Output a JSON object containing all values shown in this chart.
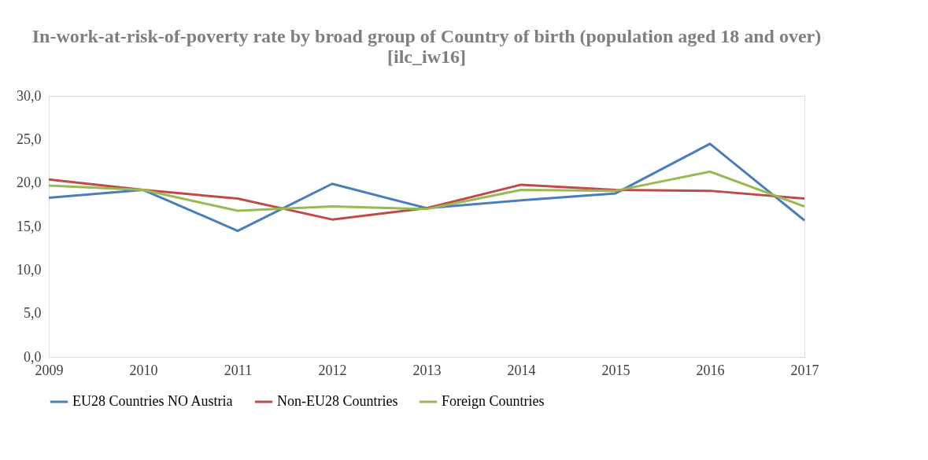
{
  "chart_data": {
    "type": "line",
    "title": [
      "In-work-at-risk-of-poverty rate by broad group of Country of birth (population aged 18 and over)",
      "[ilc_iw16]"
    ],
    "categories": [
      "2009",
      "2010",
      "2011",
      "2012",
      "2013",
      "2014",
      "2015",
      "2016",
      "2017"
    ],
    "series": [
      {
        "name": "EU28 Countries NO Austria",
        "color": "#4a7ebb",
        "values": [
          18.3,
          19.2,
          14.5,
          19.9,
          17.1,
          18.0,
          18.8,
          24.5,
          15.7
        ]
      },
      {
        "name": "Non-EU28 Countries",
        "color": "#be4b48",
        "values": [
          20.4,
          19.2,
          18.2,
          15.8,
          17.1,
          19.8,
          19.2,
          19.1,
          18.2
        ]
      },
      {
        "name": "Foreign Countries",
        "color": "#98b954",
        "values": [
          19.7,
          19.2,
          16.8,
          17.3,
          17.0,
          19.2,
          19.1,
          21.3,
          17.3
        ]
      }
    ],
    "ylim": [
      0,
      30
    ],
    "yticks": [
      {
        "value": 0,
        "label": "0,0"
      },
      {
        "value": 5,
        "label": "5,0"
      },
      {
        "value": 10,
        "label": "10,0"
      },
      {
        "value": 15,
        "label": "15,0"
      },
      {
        "value": 20,
        "label": "20,0"
      },
      {
        "value": 25,
        "label": "25,0"
      },
      {
        "value": 30,
        "label": "30,0"
      }
    ],
    "grid": false,
    "legend": "bottom",
    "marker": "none",
    "line_style": "solid"
  }
}
